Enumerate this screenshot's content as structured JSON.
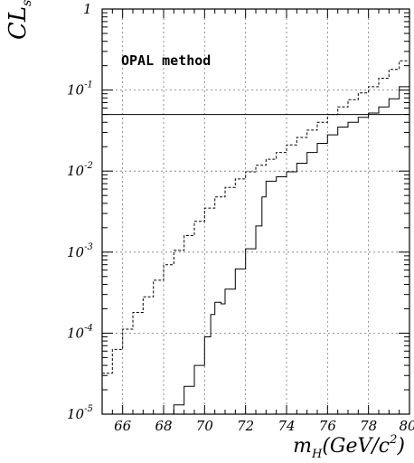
{
  "chart_data": {
    "type": "line",
    "title": "",
    "annotation": "OPAL method",
    "xlabel": "m_H(GeV/c^2)",
    "ylabel": "CL_s",
    "x_scale": "linear",
    "y_scale": "log",
    "xlim": [
      65,
      80
    ],
    "ylim": [
      1e-05,
      1
    ],
    "grid": true,
    "x_ticks": [
      66,
      68,
      70,
      72,
      74,
      76,
      78,
      80
    ],
    "y_ticks": [
      {
        "value": 1,
        "base": "1",
        "exp": ""
      },
      {
        "value": 0.1,
        "base": "10",
        "exp": "-1"
      },
      {
        "value": 0.01,
        "base": "10",
        "exp": "-2"
      },
      {
        "value": 0.001,
        "base": "10",
        "exp": "-3"
      },
      {
        "value": 0.0001,
        "base": "10",
        "exp": "-4"
      },
      {
        "value": 1e-05,
        "base": "10",
        "exp": "-5"
      }
    ],
    "reference_line": {
      "y": 0.05
    },
    "series": [
      {
        "style": "dashed",
        "x": [
          65.0,
          65.5,
          66.0,
          66.5,
          67.0,
          67.5,
          68.0,
          68.5,
          69.0,
          69.5,
          70.0,
          70.5,
          71.0,
          71.5,
          72.0,
          72.5,
          73.0,
          73.5,
          74.0,
          74.5,
          75.0,
          75.5,
          76.0,
          76.5,
          77.0,
          77.5,
          78.0,
          78.5,
          79.0,
          79.5,
          80.0
        ],
        "y": [
          3.2e-05,
          6.3e-05,
          0.000112,
          0.00018,
          0.00028,
          0.00045,
          0.0007,
          0.00105,
          0.0016,
          0.0024,
          0.0035,
          0.0048,
          0.0063,
          0.008,
          0.0098,
          0.0118,
          0.014,
          0.017,
          0.021,
          0.026,
          0.032,
          0.04,
          0.05,
          0.062,
          0.076,
          0.092,
          0.11,
          0.14,
          0.18,
          0.23,
          0.3
        ]
      },
      {
        "style": "solid",
        "x": [
          68.2,
          68.5,
          69.0,
          69.5,
          70.0,
          70.3,
          70.5,
          70.8,
          71.0,
          71.5,
          72.0,
          72.5,
          72.8,
          73.0,
          73.5,
          74.0,
          74.5,
          75.0,
          75.5,
          76.0,
          76.5,
          77.0,
          77.5,
          78.0,
          78.5,
          79.0,
          79.5,
          80.0
        ],
        "y": [
          1e-05,
          1.3e-05,
          2.2e-05,
          4e-05,
          9e-05,
          0.00017,
          0.00024,
          0.00023,
          0.00035,
          0.00062,
          0.0011,
          0.0021,
          0.0048,
          0.0075,
          0.0085,
          0.0098,
          0.0125,
          0.017,
          0.022,
          0.028,
          0.035,
          0.04,
          0.046,
          0.052,
          0.062,
          0.078,
          0.11,
          0.16
        ]
      }
    ]
  }
}
